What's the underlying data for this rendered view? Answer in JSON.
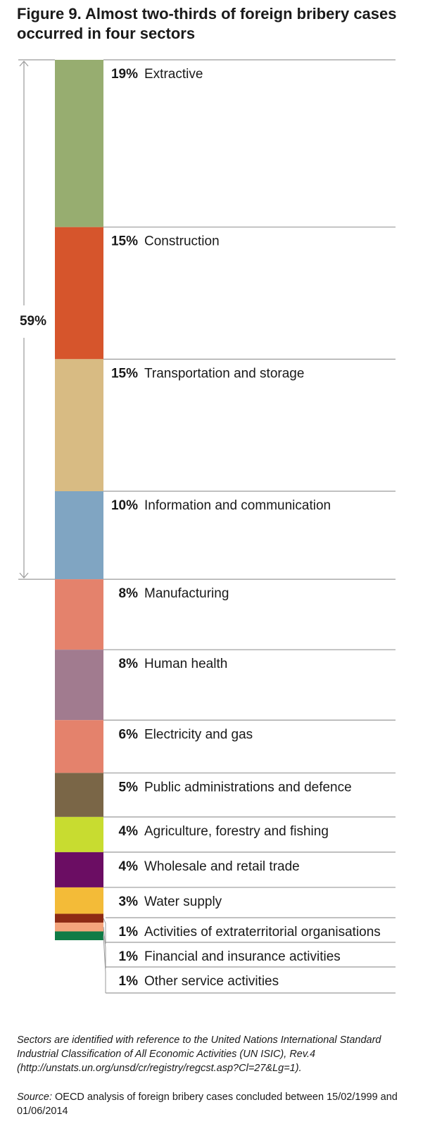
{
  "title": {
    "prefix": "Figure 9.",
    "text": "Almost two-thirds of foreign bribery cases occurred in four sectors"
  },
  "chart_data": {
    "type": "bar",
    "orientation": "stacked-vertical",
    "unit": "%",
    "categories": [
      "Extractive",
      "Construction",
      "Transportation and storage",
      "Information and communication",
      "Manufacturing",
      "Human health",
      "Electricity and gas",
      "Public administrations and defence",
      "Agriculture, forestry and fishing",
      "Wholesale and retail trade",
      "Water supply",
      "Activities of extraterritorial organisations",
      "Financial and insurance activities",
      "Other service activities"
    ],
    "values": [
      19,
      15,
      15,
      10,
      8,
      8,
      6,
      5,
      4,
      4,
      3,
      1,
      1,
      1
    ],
    "value_labels": [
      "19%",
      "15%",
      "15%",
      "10%",
      "8%",
      "8%",
      "6%",
      "5%",
      "4%",
      "4%",
      "3%",
      "1%",
      "1%",
      "1%"
    ],
    "colors": [
      "#97ad70",
      "#d6552c",
      "#d8bb83",
      "#80a5c2",
      "#e4826c",
      "#a17b8f",
      "#e4826c",
      "#7a6647",
      "#c8dc30",
      "#6b0d63",
      "#f3bb38",
      "#8d2b14",
      "#f4a57c",
      "#0f7b46"
    ],
    "bracket": {
      "label": "59%",
      "covers_first_n": 4
    },
    "grid": false,
    "legend": "none"
  },
  "footnote": "Sectors are identified with reference to the United Nations International Standard Industrial Classification of All Economic Activities (UN ISIC), Rev.4 (http://unstats.un.org/unsd/cr/registry/regcst.asp?Cl=27&Lg=1).",
  "source": {
    "label": "Source:",
    "text": "OECD analysis of foreign bribery cases concluded between 15/02/1999 and 01/06/2014"
  }
}
